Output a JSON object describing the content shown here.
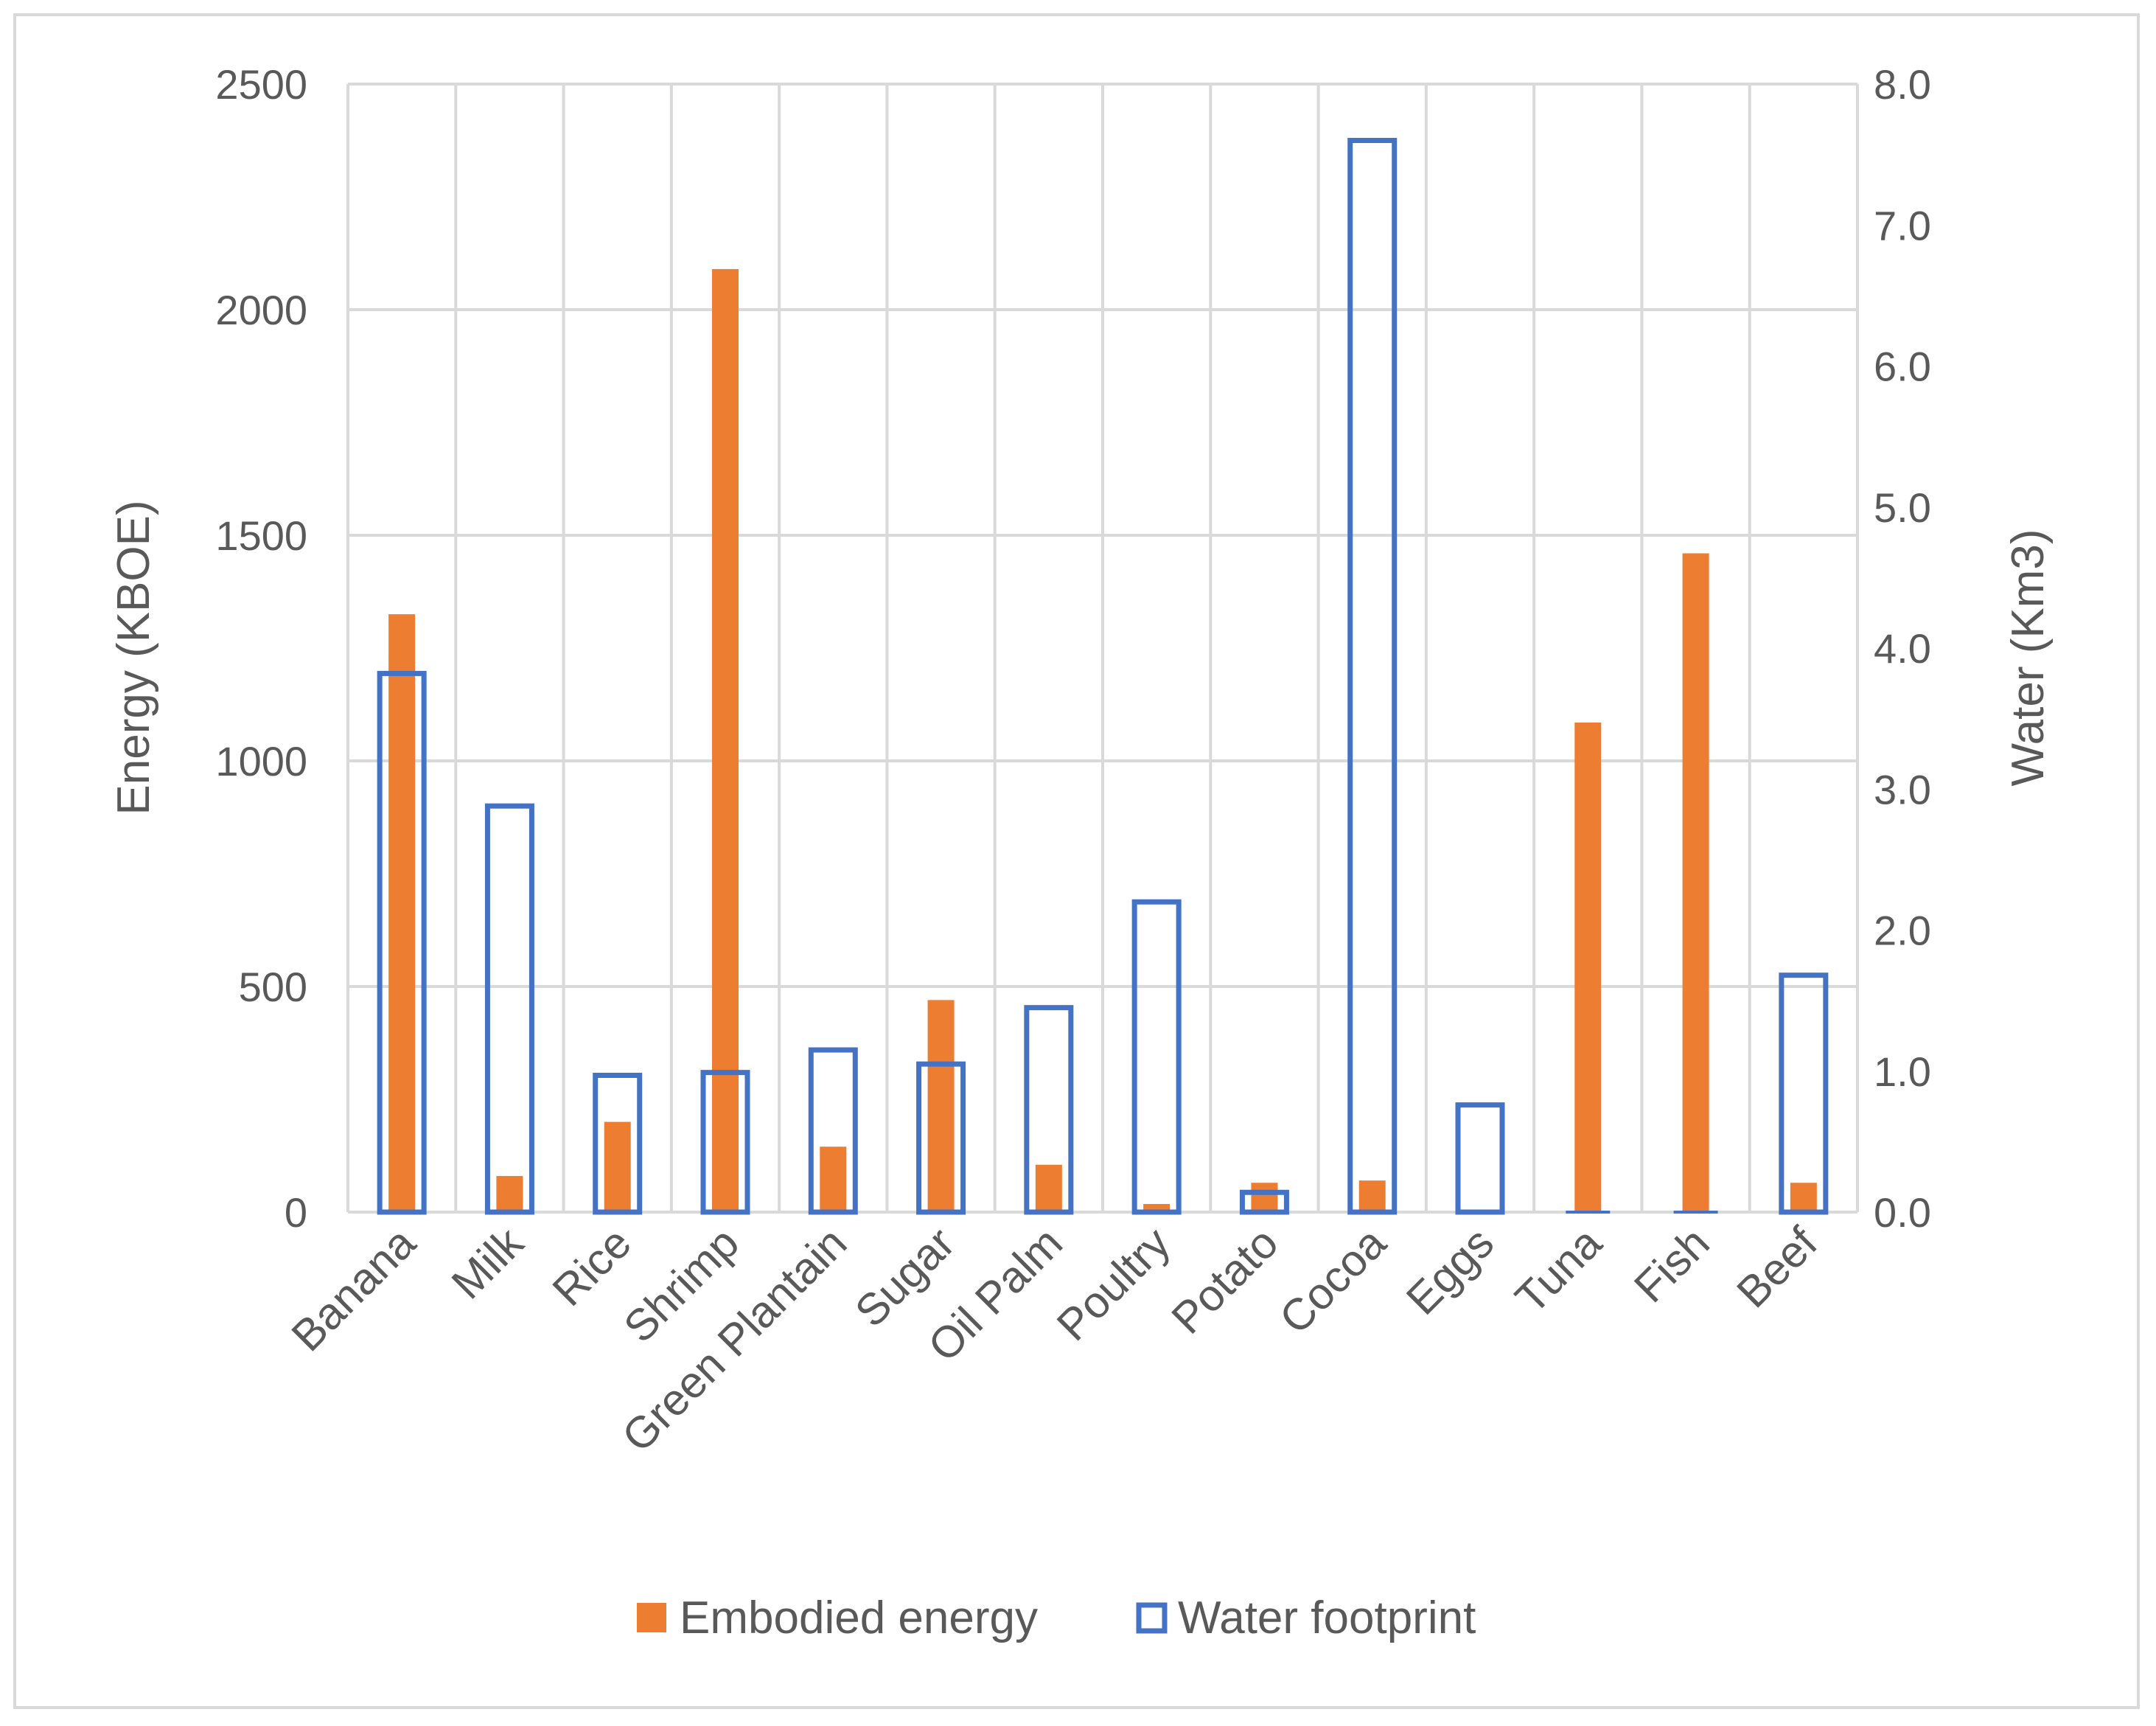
{
  "chart_data": {
    "type": "bar",
    "categories": [
      "Banana",
      "Milk",
      "Rice",
      "Shrimp",
      "Green Plantain",
      "Sugar",
      "Oil Palm",
      "Poultry",
      "Potato",
      "Cocoa",
      "Eggs",
      "Tuna",
      "Fish",
      "Beef"
    ],
    "series": [
      {
        "name": "Embodied energy",
        "axis": "left",
        "style": "filled",
        "color": "#ED7D31",
        "values": [
          1325,
          80,
          200,
          2090,
          145,
          470,
          105,
          18,
          65,
          70,
          2,
          1085,
          1460,
          65
        ]
      },
      {
        "name": "Water footprint",
        "axis": "right",
        "style": "outline",
        "color": "#4472C4",
        "values": [
          3.82,
          2.88,
          0.97,
          0.99,
          1.15,
          1.05,
          1.45,
          2.2,
          0.14,
          7.6,
          0.76,
          0,
          0,
          1.68
        ]
      }
    ],
    "yaxis_left": {
      "label": "Energy (KBOE)",
      "ylim": [
        0,
        2500
      ],
      "ticks": [
        "0",
        "500",
        "1000",
        "1500",
        "2000",
        "2500"
      ]
    },
    "yaxis_right": {
      "label": "Water (Km3)",
      "ylim": [
        0,
        8
      ],
      "ticks": [
        "0.0",
        "1.0",
        "2.0",
        "3.0",
        "4.0",
        "5.0",
        "6.0",
        "7.0",
        "8.0"
      ]
    },
    "grid": true,
    "legend": "bottom",
    "gridColor": "#d9d9d9"
  }
}
